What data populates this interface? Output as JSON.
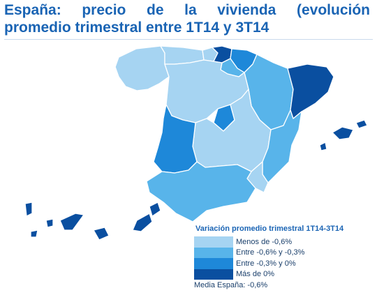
{
  "title": {
    "line1": "España: precio de la vivienda (evolución",
    "line2": "promedio trimestral entre 1T14 y 3T14"
  },
  "colors": {
    "light": "#a6d4f2",
    "mid_light": "#58b4ea",
    "mid_dark": "#1e88d9",
    "dark": "#0a4fa0"
  },
  "legend": {
    "title": "Variación promedio trimestral 1T14-3T14",
    "items": [
      {
        "label": "Menos de -0,6%",
        "color": "#a6d4f2"
      },
      {
        "label": "Entre -0,6% y -0,3%",
        "color": "#58b4ea"
      },
      {
        "label": "Entre -0,3% y 0%",
        "color": "#1e88d9"
      },
      {
        "label": "Más de 0%",
        "color": "#0a4fa0"
      }
    ],
    "media": "Media España: -0,6%"
  },
  "regions": [
    {
      "name": "Galicia",
      "category": "Menos de -0,6%"
    },
    {
      "name": "Asturias",
      "category": "Menos de -0,6%"
    },
    {
      "name": "Cantabria",
      "category": "Menos de -0,6%"
    },
    {
      "name": "País Vasco",
      "category": "Más de 0%"
    },
    {
      "name": "Navarra",
      "category": "Entre -0,3% y 0%"
    },
    {
      "name": "La Rioja",
      "category": "Entre -0,6% y -0,3%"
    },
    {
      "name": "Aragón",
      "category": "Entre -0,6% y -0,3%"
    },
    {
      "name": "Cataluña",
      "category": "Más de 0%"
    },
    {
      "name": "Castilla y León",
      "category": "Menos de -0,6%"
    },
    {
      "name": "Madrid",
      "category": "Entre -0,3% y 0%"
    },
    {
      "name": "Castilla-La Mancha",
      "category": "Menos de -0,6%"
    },
    {
      "name": "Comunidad Valenciana",
      "category": "Entre -0,6% y -0,3%"
    },
    {
      "name": "Extremadura",
      "category": "Entre -0,3% y 0%"
    },
    {
      "name": "Andalucía",
      "category": "Entre -0,6% y -0,3%"
    },
    {
      "name": "Murcia",
      "category": "Menos de -0,6%"
    },
    {
      "name": "Islas Baleares",
      "category": "Más de 0%"
    },
    {
      "name": "Canarias",
      "category": "Más de 0%"
    }
  ]
}
